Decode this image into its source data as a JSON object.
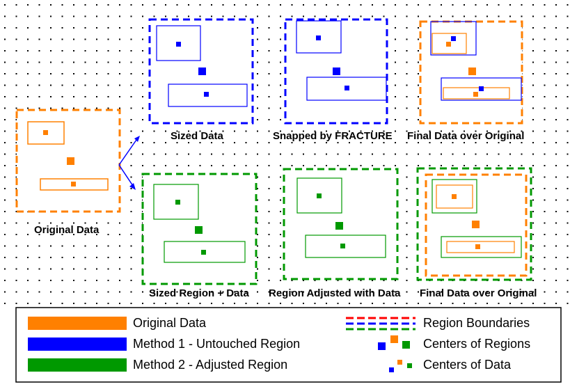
{
  "colors": {
    "original": "#ff8000",
    "method1": "#0000ff",
    "method2": "#009900",
    "background": "#ffffff",
    "dots": "#000000"
  },
  "panels": {
    "original": "Original Data",
    "sized": "Sized Data",
    "snapped": "Snapped by FRACTURE",
    "final_top": "Final Data over Original",
    "sized_region": "Sized Region + Data",
    "region_adjusted": "Region Adjusted with Data",
    "final_bottom": "Final Data over Original"
  },
  "legend": {
    "original_data": "Original Data",
    "method1": "Method 1 - Untouched Region",
    "method2": "Method 2 - Adjusted Region",
    "region_boundaries": "Region Boundaries",
    "centers_of_regions": "Centers of Regions",
    "centers_of_data": "Centers of Data"
  }
}
